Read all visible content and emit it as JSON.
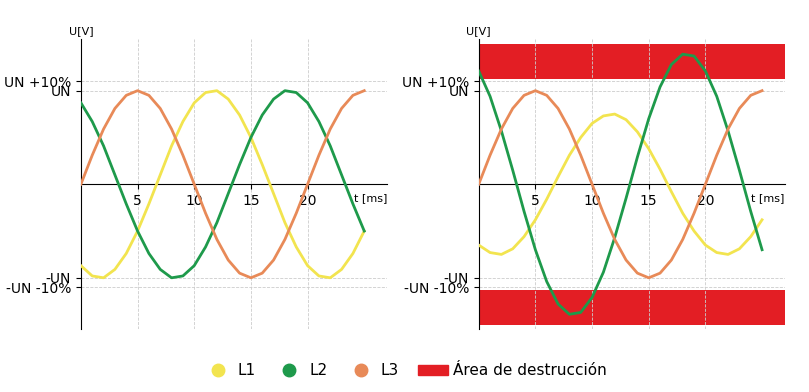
{
  "chart_data": [
    {
      "type": "line",
      "x": [
        0,
        1,
        2,
        3,
        4,
        5,
        6,
        7,
        8,
        9,
        10,
        11,
        12,
        13,
        14,
        15,
        16,
        17,
        18,
        19,
        20,
        21,
        22,
        23,
        24,
        25
      ],
      "xlim": [
        0,
        27
      ],
      "xticks": [
        5,
        10,
        15,
        20
      ],
      "ylim": [
        -1.55,
        1.55
      ],
      "yticks": [
        {
          "value": -1.1,
          "label": "-UN -10%"
        },
        {
          "value": -1,
          "label": "-UN"
        },
        {
          "value": 1,
          "label": "UN"
        },
        {
          "value": 1.1,
          "label": "UN +10%"
        }
      ],
      "x_label": "t [ms]",
      "y_label": "U[V]",
      "grid": true,
      "series": [
        {
          "name": "L1",
          "color": "#f2e44f",
          "values": [
            -0.87,
            -0.98,
            -1.0,
            -0.91,
            -0.74,
            -0.5,
            -0.21,
            0.1,
            0.41,
            0.67,
            0.87,
            0.98,
            1.0,
            0.91,
            0.74,
            0.5,
            0.21,
            -0.1,
            -0.41,
            -0.67,
            -0.87,
            -0.98,
            -1.0,
            -0.91,
            -0.74,
            -0.5
          ]
        },
        {
          "name": "L2",
          "color": "#1e9a4b",
          "values": [
            0.87,
            0.67,
            0.41,
            0.1,
            -0.21,
            -0.5,
            -0.74,
            -0.91,
            -1.0,
            -0.98,
            -0.87,
            -0.67,
            -0.41,
            -0.1,
            0.21,
            0.5,
            0.74,
            0.91,
            1.0,
            0.98,
            0.87,
            0.67,
            0.41,
            0.1,
            -0.21,
            -0.5
          ]
        },
        {
          "name": "L3",
          "color": "#e88a58",
          "values": [
            0,
            0.31,
            0.59,
            0.81,
            0.95,
            1.0,
            0.95,
            0.81,
            0.59,
            0.31,
            0,
            -0.31,
            -0.59,
            -0.81,
            -0.95,
            -1.0,
            -0.95,
            -0.81,
            -0.59,
            -0.31,
            0,
            0.31,
            0.59,
            0.81,
            0.95,
            1.0
          ]
        }
      ]
    },
    {
      "type": "line",
      "x": [
        0,
        1,
        2,
        3,
        4,
        5,
        6,
        7,
        8,
        9,
        10,
        11,
        12,
        13,
        14,
        15,
        16,
        17,
        18,
        19,
        20,
        21,
        22,
        23,
        24,
        25
      ],
      "xlim": [
        0,
        27
      ],
      "xticks": [
        5,
        10,
        15,
        20
      ],
      "ylim": [
        -1.55,
        1.55
      ],
      "yticks": [
        {
          "value": -1.1,
          "label": "-UN -10%"
        },
        {
          "value": -1,
          "label": "-UN"
        },
        {
          "value": 1,
          "label": "UN"
        },
        {
          "value": 1.1,
          "label": "UN +10%"
        }
      ],
      "x_label": "t [ms]",
      "y_label": "U[V]",
      "grid": true,
      "legend": "lower center",
      "series": [
        {
          "name": "L1",
          "color": "#f2e44f",
          "values": [
            -0.65,
            -0.73,
            -0.75,
            -0.69,
            -0.56,
            -0.38,
            -0.16,
            0.08,
            0.31,
            0.5,
            0.65,
            0.73,
            0.75,
            0.69,
            0.56,
            0.38,
            0.16,
            -0.08,
            -0.31,
            -0.5,
            -0.65,
            -0.73,
            -0.75,
            -0.69,
            -0.56,
            -0.38
          ]
        },
        {
          "name": "L2",
          "color": "#1e9a4b",
          "values": [
            1.21,
            0.94,
            0.57,
            0.15,
            -0.29,
            -0.7,
            -1.04,
            -1.28,
            -1.39,
            -1.37,
            -1.21,
            -0.94,
            -0.57,
            -0.15,
            0.29,
            0.7,
            1.04,
            1.28,
            1.39,
            1.37,
            1.21,
            0.94,
            0.57,
            0.15,
            -0.29,
            -0.7
          ]
        },
        {
          "name": "L3",
          "color": "#e88a58",
          "values": [
            0,
            0.31,
            0.59,
            0.81,
            0.95,
            1.0,
            0.95,
            0.81,
            0.59,
            0.31,
            0,
            -0.31,
            -0.59,
            -0.81,
            -0.95,
            -1.0,
            -0.95,
            -0.81,
            -0.59,
            -0.31,
            0,
            0.31,
            0.59,
            0.81,
            0.95,
            1.0
          ]
        }
      ],
      "destruction_area": {
        "name": "Área de destrucción",
        "color": "#e31e24",
        "ranges": [
          [
            1.13,
            1.5
          ],
          [
            -1.5,
            -1.13
          ]
        ]
      }
    }
  ]
}
